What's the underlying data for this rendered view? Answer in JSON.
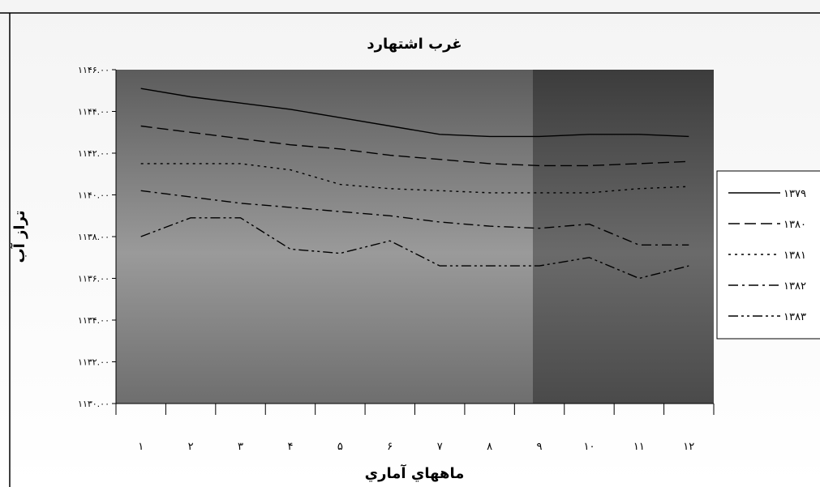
{
  "chart_data": {
    "type": "line",
    "title": "غرب اشتهارد",
    "xlabel": "ماههاي آماري",
    "ylabel": "تراز آب",
    "categories": [
      "۱",
      "۲",
      "۳",
      "۴",
      "۵",
      "۶",
      "۷",
      "۸",
      "۹",
      "۱۰",
      "۱۱",
      "۱۲"
    ],
    "y_tick_labels": [
      "۱۱۴۶.۰۰",
      "۱۱۴۴.۰۰",
      "۱۱۴۲.۰۰",
      "۱۱۴۰.۰۰",
      "۱۱۳۸.۰۰",
      "۱۱۳۶.۰۰",
      "۱۱۳۴.۰۰",
      "۱۱۳۲.۰۰",
      "۱۱۳۰.۰۰"
    ],
    "ylim": [
      1130,
      1146
    ],
    "y_step": 2,
    "grid": false,
    "legend_position": "right",
    "series": [
      {
        "name": "۱۳۷۹",
        "dash": "solid",
        "values": [
          1145.1,
          1144.7,
          1144.4,
          1144.1,
          1143.7,
          1143.3,
          1142.9,
          1142.8,
          1142.8,
          1142.9,
          1142.9,
          1142.8
        ]
      },
      {
        "name": "۱۳۸۰",
        "dash": "dash",
        "values": [
          1143.3,
          1143.0,
          1142.7,
          1142.4,
          1142.2,
          1141.9,
          1141.7,
          1141.5,
          1141.4,
          1141.4,
          1141.5,
          1141.6
        ]
      },
      {
        "name": "۱۳۸۱",
        "dash": "dot",
        "values": [
          1141.5,
          1141.5,
          1141.5,
          1141.2,
          1140.5,
          1140.3,
          1140.2,
          1140.1,
          1140.1,
          1140.1,
          1140.3,
          1140.4
        ]
      },
      {
        "name": "۱۳۸۲",
        "dash": "dashdot",
        "values": [
          1140.2,
          1139.9,
          1139.6,
          1139.4,
          1139.2,
          1139.0,
          1138.7,
          1138.5,
          1138.4,
          1138.6,
          1137.6,
          1137.6
        ]
      },
      {
        "name": "۱۳۸۳",
        "dash": "dashdotdot",
        "values": [
          1138.0,
          1138.9,
          1138.9,
          1137.4,
          1137.2,
          1137.8,
          1136.6,
          1136.6,
          1136.6,
          1137.0,
          1136.0,
          1136.6
        ]
      }
    ]
  }
}
